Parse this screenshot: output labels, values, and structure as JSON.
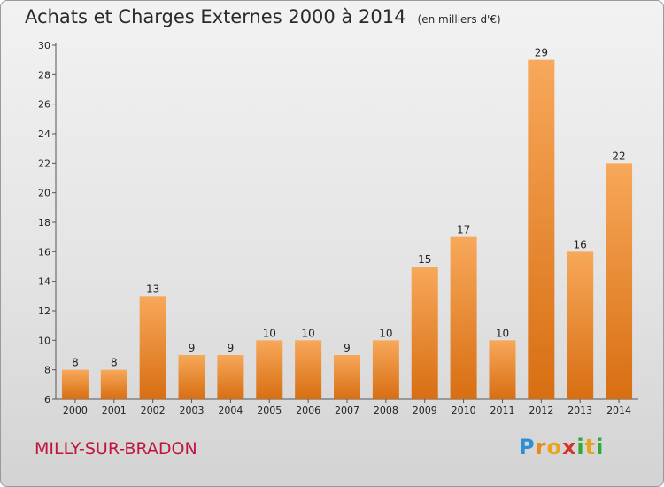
{
  "title": "Achats et Charges Externes 2000 à 2014",
  "unit": "(en milliers d'€)",
  "city": "MILLY-SUR-BRADON",
  "logo": {
    "letters": [
      "P",
      "r",
      "o",
      "x",
      "i",
      "t",
      "i"
    ],
    "colors": [
      "#2e8fd6",
      "#e88a1c",
      "#e8a41c",
      "#d8322c",
      "#2eaa3c",
      "#e8a41c",
      "#2eaa3c"
    ]
  },
  "chart_data": {
    "type": "bar",
    "categories": [
      "2000",
      "2001",
      "2002",
      "2003",
      "2004",
      "2005",
      "2006",
      "2007",
      "2008",
      "2009",
      "2010",
      "2011",
      "2012",
      "2013",
      "2014"
    ],
    "values": [
      8,
      8,
      13,
      9,
      9,
      10,
      10,
      9,
      10,
      15,
      17,
      10,
      29,
      16,
      22
    ],
    "ylim": [
      6,
      30
    ],
    "yticks": [
      6,
      8,
      10,
      12,
      14,
      16,
      18,
      20,
      22,
      24,
      26,
      28,
      30
    ],
    "grid": false,
    "bar_color": "#f08a2a"
  }
}
